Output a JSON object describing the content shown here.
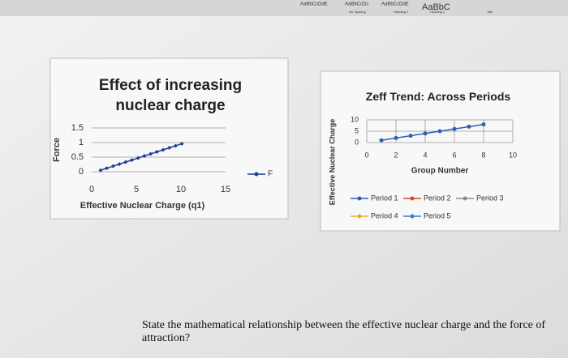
{
  "ribbon": [
    "AaBbCcDdE",
    "AaBbCcDc",
    "AaBbCcDdE",
    "AaBbC",
    "No Spacing",
    "Heading 1",
    "Heading 2",
    "Title"
  ],
  "chart_data": [
    {
      "type": "line",
      "title": "Effect of increasing nuclear charge",
      "x_label": "Effective Nuclear Charge (q1)",
      "y_label": "Force",
      "x": [
        1,
        1.7,
        2.4,
        3.1,
        3.8,
        4.5,
        5.2,
        5.9,
        6.6,
        7.3,
        8,
        8.7,
        9.4,
        10.1
      ],
      "series": [
        {
          "name": "F",
          "color": "#1f3c99",
          "values": [
            0.05,
            0.12,
            0.19,
            0.26,
            0.33,
            0.4,
            0.47,
            0.54,
            0.61,
            0.68,
            0.75,
            0.82,
            0.89,
            0.96
          ]
        }
      ],
      "xlim": [
        0,
        15
      ],
      "xticks": [
        0,
        5,
        10,
        15
      ],
      "ylim": [
        0,
        1.5
      ],
      "yticks": [
        0,
        0.5,
        1,
        1.5
      ],
      "grid": true,
      "legend": "right"
    },
    {
      "type": "line",
      "title": "Zeff Trend: Across Periods",
      "x_label": "Group Number",
      "y_label": "Effective Nuclear Charge",
      "x": [
        1,
        2,
        3,
        4,
        5,
        6,
        7,
        8
      ],
      "series": [
        {
          "name": "Period 1",
          "color": "#2e5fb3",
          "values": [
            1,
            2,
            3,
            4,
            5,
            6,
            7,
            8
          ]
        },
        {
          "name": "Period 2",
          "color": "#d9482b",
          "values": [
            null,
            null,
            null,
            null,
            null,
            null,
            null,
            null
          ]
        },
        {
          "name": "Period 3",
          "color": "#8c8c8c",
          "values": [
            null,
            null,
            null,
            null,
            null,
            null,
            null,
            null
          ]
        },
        {
          "name": "Period 4",
          "color": "#f0a830",
          "values": [
            null,
            null,
            null,
            null,
            null,
            null,
            null,
            null
          ]
        },
        {
          "name": "Period 5",
          "color": "#3a7cc9",
          "values": [
            null,
            null,
            null,
            null,
            null,
            null,
            null,
            null
          ]
        }
      ],
      "xlim": [
        0,
        10
      ],
      "xticks": [
        0,
        2,
        4,
        6,
        8,
        10
      ],
      "ylim": [
        0,
        10
      ],
      "yticks": [
        0,
        5,
        10
      ],
      "grid": true,
      "legend": "bottom"
    }
  ],
  "question": "State the mathematical relationship between the effective nuclear charge and the force of attraction?"
}
